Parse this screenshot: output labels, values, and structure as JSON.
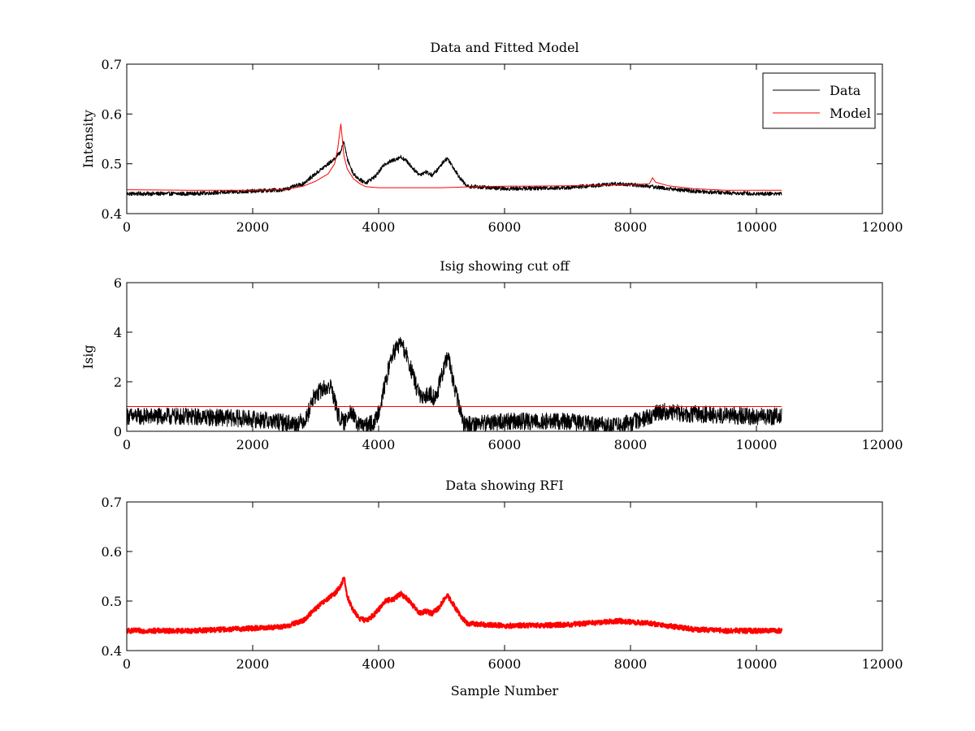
{
  "chart_data": [
    {
      "type": "line",
      "title": "Data and Fitted Model",
      "xlabel": "",
      "ylabel": "Intensity",
      "xlim": [
        0,
        12000
      ],
      "ylim": [
        0.4,
        0.7
      ],
      "xticks": [
        0,
        2000,
        4000,
        6000,
        8000,
        10000,
        12000
      ],
      "xtick_labels": [
        "0",
        "2000",
        "4000",
        "6000",
        "8000",
        "10000",
        "12000"
      ],
      "yticks": [
        0.4,
        0.5,
        0.6,
        0.7
      ],
      "ytick_labels": [
        "0.4",
        "0.5",
        "0.6",
        "0.7"
      ],
      "grid": false,
      "legend": "top-right",
      "series": [
        {
          "name": "Data",
          "color": "#000000",
          "noise": 0.004,
          "x": [
            0,
            1000,
            2000,
            2500,
            2800,
            3000,
            3200,
            3300,
            3400,
            3450,
            3500,
            3600,
            3700,
            3800,
            3950,
            4100,
            4250,
            4350,
            4450,
            4550,
            4650,
            4750,
            4850,
            4950,
            5050,
            5100,
            5200,
            5300,
            5400,
            6000,
            7000,
            7800,
            8300,
            8600,
            9000,
            9500,
            10000,
            10400
          ],
          "y": [
            0.44,
            0.44,
            0.445,
            0.448,
            0.46,
            0.48,
            0.5,
            0.51,
            0.525,
            0.545,
            0.51,
            0.48,
            0.468,
            0.462,
            0.475,
            0.5,
            0.508,
            0.514,
            0.505,
            0.49,
            0.478,
            0.484,
            0.477,
            0.49,
            0.508,
            0.51,
            0.49,
            0.47,
            0.455,
            0.45,
            0.452,
            0.46,
            0.455,
            0.45,
            0.445,
            0.442,
            0.44,
            0.44
          ]
        },
        {
          "name": "Model",
          "color": "#ff0000",
          "noise": 0,
          "x": [
            0,
            1000,
            2000,
            2500,
            2800,
            3000,
            3200,
            3300,
            3350,
            3400,
            3420,
            3450,
            3500,
            3600,
            3700,
            3800,
            4000,
            5000,
            5500,
            6000,
            7000,
            8000,
            8300,
            8350,
            8400,
            8600,
            9000,
            9500,
            10000,
            10400
          ],
          "y": [
            0.448,
            0.447,
            0.447,
            0.448,
            0.455,
            0.465,
            0.48,
            0.5,
            0.53,
            0.58,
            0.555,
            0.515,
            0.49,
            0.47,
            0.46,
            0.454,
            0.452,
            0.452,
            0.454,
            0.455,
            0.456,
            0.458,
            0.46,
            0.472,
            0.463,
            0.456,
            0.45,
            0.447,
            0.447,
            0.447
          ]
        }
      ]
    },
    {
      "type": "line",
      "title": "Isig showing cut off",
      "xlabel": "",
      "ylabel": "Isig",
      "xlim": [
        0,
        12000
      ],
      "ylim": [
        0,
        6
      ],
      "xticks": [
        0,
        2000,
        4000,
        6000,
        8000,
        10000,
        12000
      ],
      "xtick_labels": [
        "0",
        "2000",
        "4000",
        "6000",
        "8000",
        "10000",
        "12000"
      ],
      "yticks": [
        0,
        2,
        4,
        6
      ],
      "ytick_labels": [
        "0",
        "2",
        "4",
        "6"
      ],
      "grid": false,
      "legend": "none",
      "series": [
        {
          "color": "#000000",
          "noise": 0.35,
          "x": [
            0,
            1000,
            2000,
            2700,
            2850,
            2950,
            3100,
            3250,
            3350,
            3450,
            3550,
            3650,
            3800,
            3950,
            4050,
            4200,
            4350,
            4450,
            4600,
            4700,
            4800,
            4900,
            5000,
            5100,
            5200,
            5350,
            5500,
            6000,
            7000,
            7800,
            8200,
            8500,
            9000,
            10000,
            10400
          ],
          "y": [
            0.6,
            0.6,
            0.5,
            0.3,
            0.5,
            1.3,
            1.7,
            1.8,
            0.7,
            0.3,
            0.9,
            0.3,
            0.2,
            0.4,
            1.3,
            3.0,
            3.6,
            3.0,
            1.8,
            1.2,
            1.6,
            1.3,
            2.2,
            3.1,
            1.8,
            0.3,
            0.3,
            0.4,
            0.4,
            0.2,
            0.5,
            0.8,
            0.7,
            0.6,
            0.6
          ]
        },
        {
          "color": "#ff0000",
          "noise": 0,
          "x": [
            0,
            10400
          ],
          "y": [
            1,
            1
          ]
        }
      ]
    },
    {
      "type": "line",
      "title": "Data showing RFI",
      "xlabel": "Sample Number",
      "ylabel": "",
      "xlim": [
        0,
        12000
      ],
      "ylim": [
        0.4,
        0.7
      ],
      "xticks": [
        0,
        2000,
        4000,
        6000,
        8000,
        10000,
        12000
      ],
      "xtick_labels": [
        "0",
        "2000",
        "4000",
        "6000",
        "8000",
        "10000",
        "12000"
      ],
      "yticks": [
        0.4,
        0.5,
        0.6,
        0.7
      ],
      "ytick_labels": [
        "0.4",
        "0.5",
        "0.6",
        "0.7"
      ],
      "grid": false,
      "legend": "none",
      "series": [
        {
          "color": "#ff0000",
          "noise": 0.005,
          "x": [
            0,
            1000,
            2000,
            2500,
            2800,
            3000,
            3200,
            3300,
            3400,
            3450,
            3500,
            3600,
            3700,
            3800,
            3950,
            4100,
            4250,
            4350,
            4450,
            4550,
            4650,
            4750,
            4850,
            4950,
            5050,
            5100,
            5200,
            5300,
            5400,
            6000,
            7000,
            7800,
            8300,
            8600,
            9000,
            9500,
            10000,
            10400
          ],
          "y": [
            0.44,
            0.44,
            0.445,
            0.448,
            0.46,
            0.485,
            0.505,
            0.515,
            0.53,
            0.55,
            0.51,
            0.48,
            0.465,
            0.46,
            0.475,
            0.5,
            0.505,
            0.515,
            0.505,
            0.49,
            0.475,
            0.48,
            0.475,
            0.485,
            0.505,
            0.51,
            0.49,
            0.47,
            0.455,
            0.45,
            0.452,
            0.46,
            0.455,
            0.45,
            0.443,
            0.44,
            0.44,
            0.44
          ]
        }
      ]
    }
  ]
}
